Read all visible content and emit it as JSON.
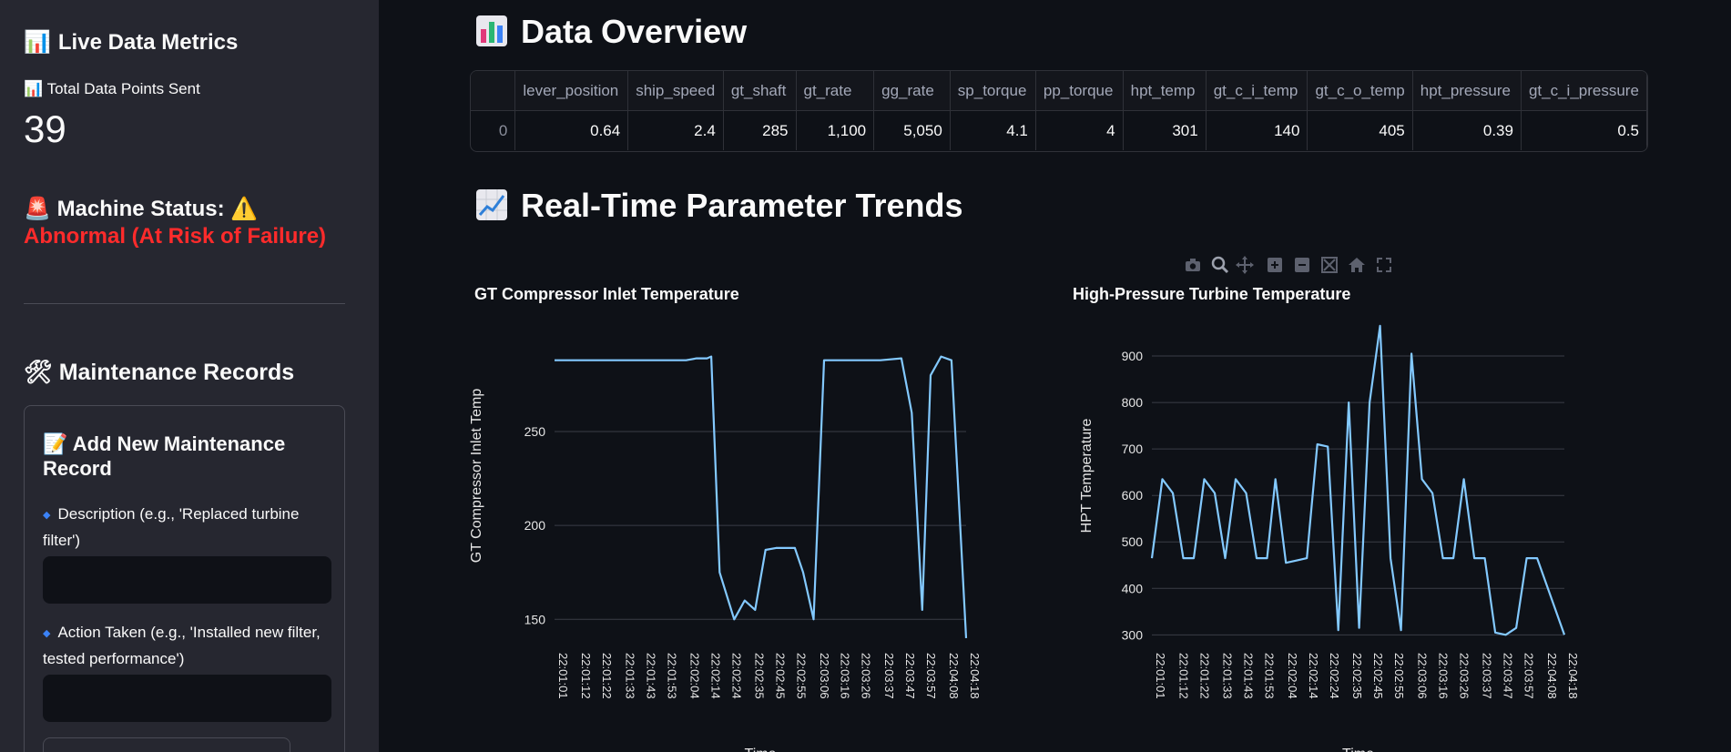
{
  "sidebar": {
    "title": "Live Data Metrics",
    "metric_label": "Total Data Points Sent",
    "metric_value": "39",
    "status_label": "Machine Status:",
    "status_value": "Abnormal (At Risk of Failure)",
    "maintenance_title": "Maintenance Records",
    "form_title": "Add New Maintenance Record",
    "description_label": "Description (e.g., 'Replaced turbine filter')",
    "description_value": "",
    "action_label": "Action Taken (e.g., 'Installed new filter, tested performance')",
    "action_value": ""
  },
  "overview": {
    "title": "Data Overview",
    "columns": [
      "",
      "lever_position",
      "ship_speed",
      "gt_shaft",
      "gt_rate",
      "gg_rate",
      "sp_torque",
      "pp_torque",
      "hpt_temp",
      "gt_c_i_temp",
      "gt_c_o_temp",
      "hpt_pressure",
      "gt_c_i_pressure"
    ],
    "rows": [
      [
        "0",
        "0.64",
        "2.4",
        "285",
        "1,100",
        "5,050",
        "4.1",
        "4",
        "301",
        "140",
        "405",
        "0.39",
        "0.5"
      ]
    ]
  },
  "trends": {
    "title": "Real-Time Parameter Trends",
    "modebar_icons": [
      "camera-icon",
      "zoom-icon",
      "pan-icon",
      "zoom-in-icon",
      "zoom-out-icon",
      "autoscale-icon",
      "home-icon",
      "fullscreen-icon"
    ]
  },
  "chart_data": [
    {
      "type": "line",
      "title": "GT Compressor Inlet Temperature",
      "xlabel": "Time",
      "ylabel": "GT Compressor Inlet Temp",
      "x": [
        "22:01:01",
        "22:01:12",
        "22:01:22",
        "22:01:33",
        "22:01:43",
        "22:01:53",
        "22:02:04",
        "22:02:14",
        "22:02:24",
        "22:02:35",
        "22:02:45",
        "22:02:55",
        "22:03:06",
        "22:03:16",
        "22:03:26",
        "22:03:37",
        "22:03:47",
        "22:03:57",
        "22:04:08",
        "22:04:18"
      ],
      "points": [
        [
          "22:01:01",
          288
        ],
        [
          "22:02:04",
          288
        ],
        [
          "22:02:09",
          289
        ],
        [
          "22:02:14",
          289
        ],
        [
          "22:02:16",
          290
        ],
        [
          "22:02:20",
          175
        ],
        [
          "22:02:27",
          150
        ],
        [
          "22:02:32",
          160
        ],
        [
          "22:02:37",
          155
        ],
        [
          "22:02:42",
          187
        ],
        [
          "22:02:47",
          188
        ],
        [
          "22:02:51",
          188
        ],
        [
          "22:02:56",
          188
        ],
        [
          "22:03:00",
          175
        ],
        [
          "22:03:05",
          150
        ],
        [
          "22:03:10",
          288
        ],
        [
          "22:03:37",
          288
        ],
        [
          "22:03:47",
          289
        ],
        [
          "22:03:52",
          260
        ],
        [
          "22:03:57",
          155
        ],
        [
          "22:04:01",
          280
        ],
        [
          "22:04:06",
          290
        ],
        [
          "22:04:11",
          288
        ],
        [
          "22:04:18",
          140
        ]
      ],
      "yticks": [
        150,
        200,
        250
      ],
      "ylim": [
        138,
        315
      ],
      "line_color": "#83c9ff",
      "grid": true
    },
    {
      "type": "line",
      "title": "High-Pressure Turbine Temperature",
      "xlabel": "Time",
      "ylabel": "HPT Temperature",
      "x": [
        "22:01:01",
        "22:01:12",
        "22:01:22",
        "22:01:33",
        "22:01:43",
        "22:01:53",
        "22:02:04",
        "22:02:14",
        "22:02:24",
        "22:02:35",
        "22:02:45",
        "22:02:55",
        "22:03:06",
        "22:03:16",
        "22:03:26",
        "22:03:37",
        "22:03:47",
        "22:03:57",
        "22:04:08",
        "22:04:18"
      ],
      "points": [
        [
          "22:01:01",
          465
        ],
        [
          "22:01:06",
          635
        ],
        [
          "22:01:11",
          605
        ],
        [
          "22:01:16",
          465
        ],
        [
          "22:01:21",
          465
        ],
        [
          "22:01:26",
          635
        ],
        [
          "22:01:31",
          605
        ],
        [
          "22:01:36",
          465
        ],
        [
          "22:01:41",
          635
        ],
        [
          "22:01:46",
          605
        ],
        [
          "22:01:51",
          465
        ],
        [
          "22:01:56",
          465
        ],
        [
          "22:02:00",
          635
        ],
        [
          "22:02:05",
          455
        ],
        [
          "22:02:10",
          460
        ],
        [
          "22:02:15",
          465
        ],
        [
          "22:02:20",
          710
        ],
        [
          "22:02:25",
          705
        ],
        [
          "22:02:30",
          310
        ],
        [
          "22:02:35",
          800
        ],
        [
          "22:02:40",
          315
        ],
        [
          "22:02:45",
          800
        ],
        [
          "22:02:50",
          965
        ],
        [
          "22:02:55",
          465
        ],
        [
          "22:03:00",
          310
        ],
        [
          "22:03:05",
          905
        ],
        [
          "22:03:10",
          635
        ],
        [
          "22:03:15",
          605
        ],
        [
          "22:03:20",
          465
        ],
        [
          "22:03:25",
          465
        ],
        [
          "22:03:30",
          635
        ],
        [
          "22:03:35",
          465
        ],
        [
          "22:03:40",
          465
        ],
        [
          "22:03:45",
          305
        ],
        [
          "22:03:50",
          300
        ],
        [
          "22:03:55",
          315
        ],
        [
          "22:04:00",
          465
        ],
        [
          "22:04:05",
          465
        ],
        [
          "22:04:18",
          300
        ]
      ],
      "yticks": [
        300,
        400,
        500,
        600,
        700,
        800,
        900
      ],
      "ylim": [
        285,
        1000
      ],
      "line_color": "#83c9ff",
      "grid": true
    }
  ]
}
